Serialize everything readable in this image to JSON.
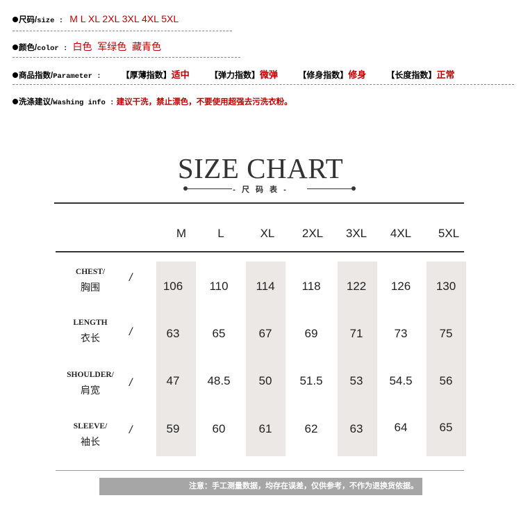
{
  "info": {
    "size_label": "尺码/",
    "size_label_en": "size :",
    "size_values": "M L XL 2XL 3XL 4XL 5XL",
    "color_label": "颜色/",
    "color_label_en": "color :",
    "color_values": "白色  军绿色  藏青色",
    "param_label": "商品指数/",
    "param_label_en": "Parameter :",
    "params": [
      {
        "name": "【厚薄指数】",
        "value": "适中"
      },
      {
        "name": "【弹力指数】",
        "value": "微弹"
      },
      {
        "name": "【修身指数】",
        "value": "修身"
      },
      {
        "name": "【长度指数】",
        "value": "正常"
      }
    ],
    "wash_label": "洗涤建议/",
    "wash_label_en": "Washing info :",
    "wash_value": "建议干洗，禁止漂色，不要使用超强去污洗衣粉。"
  },
  "chart": {
    "title": "SIZE CHART",
    "subtitle": "- 尺 码 表 -",
    "sizes": [
      "M",
      "L",
      "XL",
      "2XL",
      "3XL",
      "4XL",
      "5XL"
    ],
    "rows": [
      {
        "en": "CHEST/",
        "cn": "胸围",
        "slash": "/",
        "values": [
          "106",
          "110",
          "114",
          "118",
          "122",
          "126",
          "130"
        ]
      },
      {
        "en": "LENGTH",
        "cn": "衣长",
        "slash": "/",
        "values": [
          "63",
          "65",
          "67",
          "69",
          "71",
          "73",
          "75"
        ]
      },
      {
        "en": "SHOULDER/",
        "cn": "肩宽",
        "slash": "/",
        "values": [
          "47",
          "48.5",
          "50",
          "51.5",
          "53",
          "54.5",
          "56"
        ]
      },
      {
        "en": "SLEEVE/",
        "cn": "袖长",
        "slash": "/",
        "values": [
          "59",
          "60",
          "61",
          "62",
          "63",
          "64",
          "65"
        ]
      }
    ],
    "footer_note": "注意：手工测量数据，均存在误差，仅供参考，不作为退换货依据。"
  }
}
